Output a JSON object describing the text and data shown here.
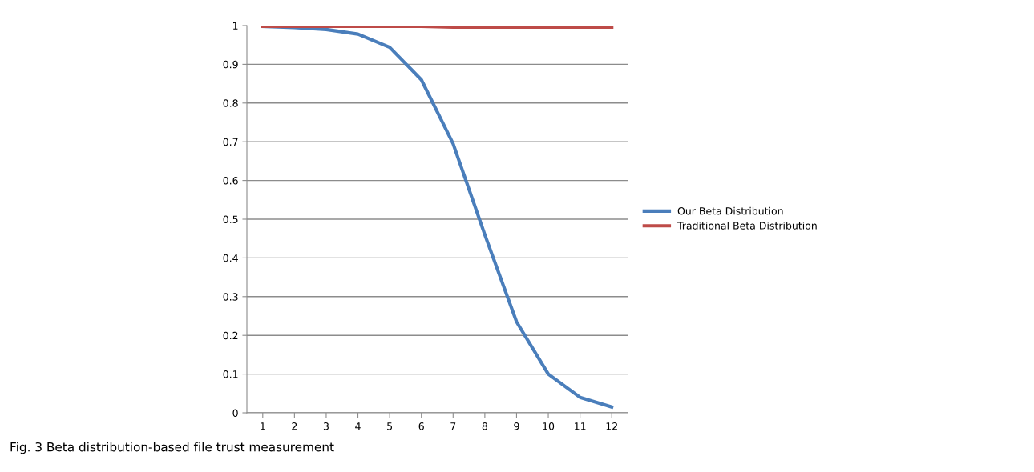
{
  "chart_data": {
    "type": "line",
    "categories": [
      "1",
      "2",
      "3",
      "4",
      "5",
      "6",
      "7",
      "8",
      "9",
      "10",
      "11",
      "12"
    ],
    "series": [
      {
        "name": "Our Beta Distribution",
        "color": "#4a7ebb",
        "values": [
          0.998,
          0.995,
          0.99,
          0.978,
          0.944,
          0.86,
          0.695,
          0.46,
          0.235,
          0.1,
          0.04,
          0.015
        ]
      },
      {
        "name": "Traditional Beta Distribution",
        "color": "#be4b48",
        "values": [
          0.998,
          0.998,
          0.998,
          0.998,
          0.998,
          0.998,
          0.996,
          0.996,
          0.996,
          0.996,
          0.996,
          0.996
        ]
      }
    ],
    "ylim": [
      0,
      1
    ],
    "yticks": [
      0,
      0.1,
      0.2,
      0.3,
      0.4,
      0.5,
      0.6,
      0.7,
      0.8,
      0.9,
      1
    ],
    "grid": "y",
    "legend": "right",
    "marker": "none",
    "line_style": "solid",
    "annotations": [
      "Fig. 3 Beta distribution-based file trust measurement"
    ]
  }
}
